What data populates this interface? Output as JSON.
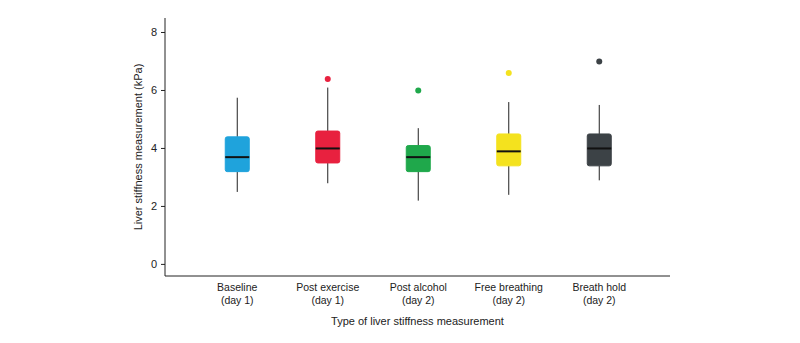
{
  "chart_data": {
    "type": "box",
    "x_label": "Type of liver stiffness measurement",
    "y_label": "Liver stiffness measurement (kPa)",
    "categories": [
      "Baseline\n(day 1)",
      "Post exercise\n(day 1)",
      "Post alcohol\n(day 2)",
      "Free breathing\n(day 2)",
      "Breath hold\n(day 2)"
    ],
    "min": [
      2.5,
      2.8,
      2.2,
      2.4,
      2.9
    ],
    "q1": [
      3.2,
      3.5,
      3.2,
      3.4,
      3.4
    ],
    "median": [
      3.7,
      4.0,
      3.7,
      3.9,
      4.0
    ],
    "q3": [
      4.4,
      4.6,
      4.1,
      4.5,
      4.5
    ],
    "max": [
      5.75,
      6.1,
      4.7,
      5.6,
      5.5
    ],
    "outliers": [
      [],
      [
        6.4
      ],
      [
        6.0
      ],
      [
        6.6
      ],
      [
        7.0
      ]
    ],
    "colors": [
      "#1fa3dc",
      "#e8213f",
      "#1fa84b",
      "#f4e21e",
      "#3c4246"
    ],
    "ylim": [
      -0.4,
      8.5
    ],
    "yticks": [
      0,
      2,
      4,
      6,
      8
    ],
    "grid": false
  }
}
